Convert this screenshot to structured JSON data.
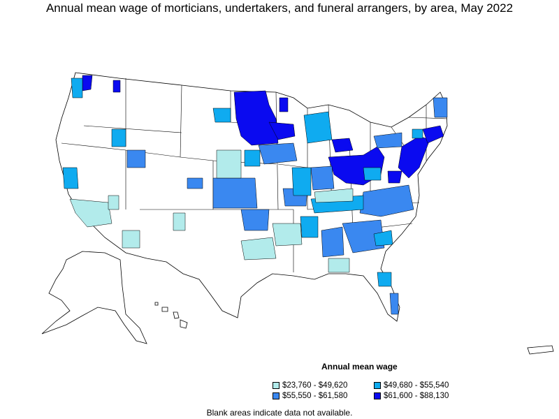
{
  "title": "Annual mean wage of morticians, undertakers, and funeral arrangers, by area, May 2022",
  "legend": {
    "title": "Annual mean wage",
    "items": [
      {
        "label": "$23,760 - $49,620",
        "color": "#b2ebeb"
      },
      {
        "label": "$49,680 - $55,540",
        "color": "#0fabf0"
      },
      {
        "label": "$55,550 - $61,580",
        "color": "#3a88f0"
      },
      {
        "label": "$61,600 - $88,130",
        "color": "#0a0af0"
      }
    ]
  },
  "note": "Blank areas indicate data not available."
}
